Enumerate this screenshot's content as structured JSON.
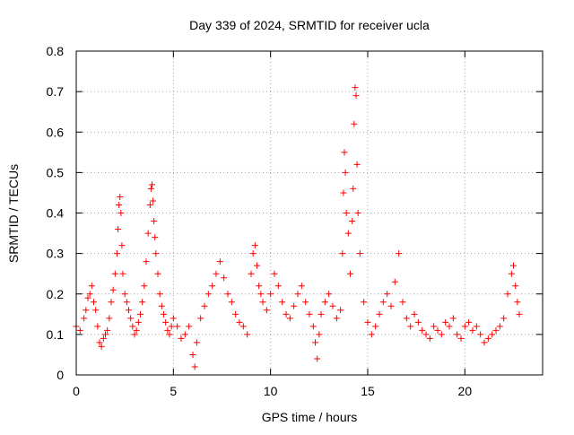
{
  "chart_data": {
    "type": "scatter",
    "title": "Day 339 of 2024, SRMTID for receiver ucla",
    "xlabel": "GPS time / hours",
    "ylabel": "SRMTID / TECUs",
    "xlim": [
      0,
      24
    ],
    "ylim": [
      0,
      0.8
    ],
    "x_ticks": [
      0,
      5,
      10,
      15,
      20
    ],
    "y_ticks": [
      0,
      0.1,
      0.2,
      0.3,
      0.4,
      0.5,
      0.6,
      0.7,
      0.8
    ],
    "x_tick_labels": [
      "0",
      "5",
      "10",
      "15",
      "20"
    ],
    "y_tick_labels": [
      "0",
      "0.1",
      "0.2",
      "0.3",
      "0.4",
      "0.5",
      "0.6",
      "0.7",
      "0.8"
    ],
    "grid": true,
    "marker": "+",
    "color": "#ff0000",
    "series": [
      {
        "name": "SRMTID",
        "x": [
          0.0,
          0.2,
          0.4,
          0.5,
          0.6,
          0.7,
          0.8,
          0.9,
          1.0,
          1.1,
          1.2,
          1.3,
          1.4,
          1.5,
          1.6,
          1.7,
          1.8,
          1.9,
          2.0,
          2.1,
          2.15,
          2.2,
          2.25,
          2.3,
          2.35,
          2.4,
          2.5,
          2.6,
          2.7,
          2.8,
          2.9,
          3.0,
          3.1,
          3.2,
          3.3,
          3.4,
          3.5,
          3.6,
          3.7,
          3.8,
          3.85,
          3.9,
          3.95,
          4.0,
          4.05,
          4.1,
          4.2,
          4.3,
          4.4,
          4.5,
          4.6,
          4.7,
          4.8,
          4.9,
          5.0,
          5.2,
          5.4,
          5.6,
          5.8,
          6.0,
          6.1,
          6.2,
          6.4,
          6.6,
          6.8,
          7.0,
          7.2,
          7.4,
          7.6,
          7.8,
          8.0,
          8.2,
          8.4,
          8.6,
          8.8,
          9.0,
          9.1,
          9.2,
          9.3,
          9.4,
          9.5,
          9.6,
          9.8,
          10.0,
          10.2,
          10.4,
          10.6,
          10.8,
          11.0,
          11.2,
          11.4,
          11.6,
          11.8,
          12.0,
          12.2,
          12.3,
          12.4,
          12.5,
          12.6,
          12.8,
          13.0,
          13.2,
          13.4,
          13.6,
          13.7,
          13.75,
          13.8,
          13.85,
          13.9,
          14.0,
          14.1,
          14.2,
          14.25,
          14.3,
          14.35,
          14.4,
          14.45,
          14.5,
          14.6,
          14.8,
          15.0,
          15.2,
          15.4,
          15.6,
          15.8,
          16.0,
          16.2,
          16.4,
          16.6,
          16.8,
          17.0,
          17.2,
          17.4,
          17.6,
          17.8,
          18.0,
          18.2,
          18.4,
          18.6,
          18.8,
          19.0,
          19.2,
          19.4,
          19.6,
          19.8,
          20.0,
          20.2,
          20.4,
          20.6,
          20.8,
          21.0,
          21.2,
          21.4,
          21.6,
          21.8,
          22.0,
          22.2,
          22.4,
          22.5,
          22.6,
          22.7,
          22.8
        ],
        "y": [
          0.12,
          0.11,
          0.14,
          0.16,
          0.19,
          0.2,
          0.22,
          0.18,
          0.16,
          0.12,
          0.08,
          0.07,
          0.09,
          0.1,
          0.11,
          0.14,
          0.18,
          0.21,
          0.25,
          0.3,
          0.36,
          0.42,
          0.44,
          0.4,
          0.32,
          0.25,
          0.2,
          0.18,
          0.16,
          0.14,
          0.12,
          0.1,
          0.11,
          0.13,
          0.15,
          0.18,
          0.22,
          0.28,
          0.35,
          0.42,
          0.46,
          0.47,
          0.43,
          0.38,
          0.34,
          0.3,
          0.25,
          0.2,
          0.17,
          0.15,
          0.13,
          0.11,
          0.1,
          0.12,
          0.14,
          0.12,
          0.09,
          0.1,
          0.12,
          0.05,
          0.02,
          0.08,
          0.14,
          0.17,
          0.2,
          0.22,
          0.25,
          0.28,
          0.24,
          0.2,
          0.18,
          0.15,
          0.13,
          0.12,
          0.1,
          0.25,
          0.3,
          0.32,
          0.27,
          0.22,
          0.2,
          0.18,
          0.16,
          0.2,
          0.25,
          0.22,
          0.18,
          0.15,
          0.14,
          0.17,
          0.2,
          0.22,
          0.18,
          0.15,
          0.12,
          0.08,
          0.04,
          0.1,
          0.15,
          0.18,
          0.2,
          0.17,
          0.14,
          0.16,
          0.3,
          0.45,
          0.55,
          0.5,
          0.4,
          0.35,
          0.25,
          0.38,
          0.46,
          0.62,
          0.71,
          0.69,
          0.52,
          0.4,
          0.3,
          0.18,
          0.13,
          0.1,
          0.12,
          0.15,
          0.18,
          0.2,
          0.17,
          0.23,
          0.3,
          0.18,
          0.14,
          0.12,
          0.15,
          0.13,
          0.11,
          0.1,
          0.09,
          0.12,
          0.11,
          0.1,
          0.13,
          0.12,
          0.14,
          0.1,
          0.09,
          0.12,
          0.13,
          0.11,
          0.12,
          0.1,
          0.08,
          0.09,
          0.1,
          0.11,
          0.12,
          0.14,
          0.2,
          0.25,
          0.27,
          0.22,
          0.18,
          0.15
        ]
      }
    ]
  }
}
